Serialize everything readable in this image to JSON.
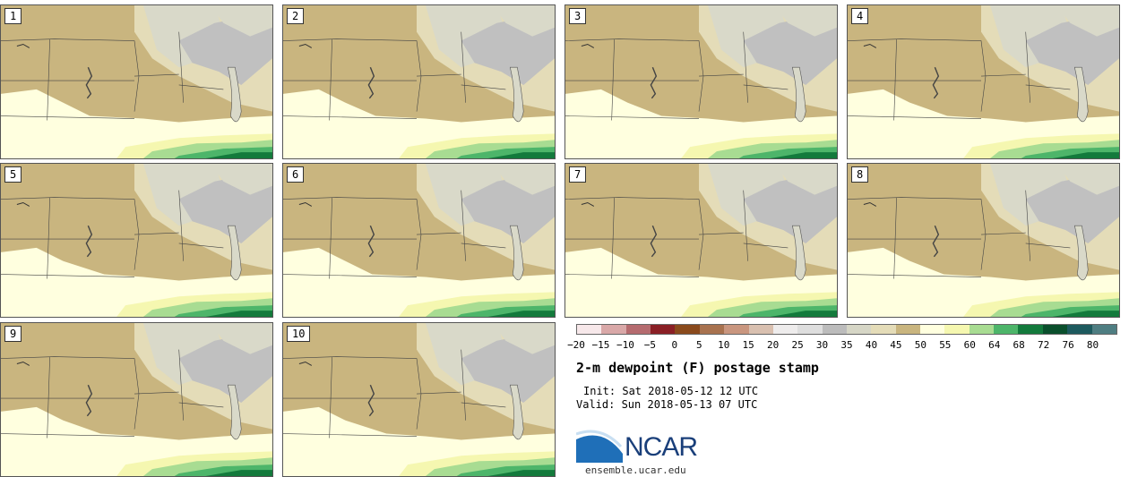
{
  "title": "2-m dewpoint (F) postage stamp",
  "init": "Init: Sat 2018-05-12 12 UTC",
  "valid": "Valid: Sun 2018-05-13 07 UTC",
  "site": "ensemble.ucar.edu",
  "logo": {
    "text": "NCAR",
    "swoosh_color": "#1f6fb8"
  },
  "members": [
    "1",
    "2",
    "3",
    "4",
    "5",
    "6",
    "7",
    "8",
    "9",
    "10"
  ],
  "legend": {
    "ticks": [
      "−20",
      "−15",
      "−10",
      "−5",
      "0",
      "5",
      "10",
      "15",
      "20",
      "25",
      "30",
      "35",
      "40",
      "45",
      "50",
      "55",
      "60",
      "64",
      "68",
      "72",
      "76",
      "80"
    ],
    "colors": [
      "#f7e8ea",
      "#d9a8a8",
      "#b56b6f",
      "#8a1f25",
      "#8a4a1c",
      "#a8724f",
      "#c9967f",
      "#d9c0b0",
      "#eeecec",
      "#dedede",
      "#bcbcbc",
      "#d6d6c6",
      "#e4dcb8",
      "#c9b57f",
      "#ffffdf",
      "#f5f7b0",
      "#a8dc92",
      "#4db56a",
      "#137a3c",
      "#0a4f2c",
      "#1d5a5e",
      "#4f7e82"
    ]
  },
  "map_colors": {
    "dry": "#c9b57f",
    "mid": "#e4dcb8",
    "gray": "#c0c0c0",
    "light": "#d9d9c9",
    "humid": "#ffffdf",
    "pale": "#f5f7b0",
    "green1": "#a8dc92",
    "green2": "#4db56a",
    "green3": "#137a3c"
  }
}
